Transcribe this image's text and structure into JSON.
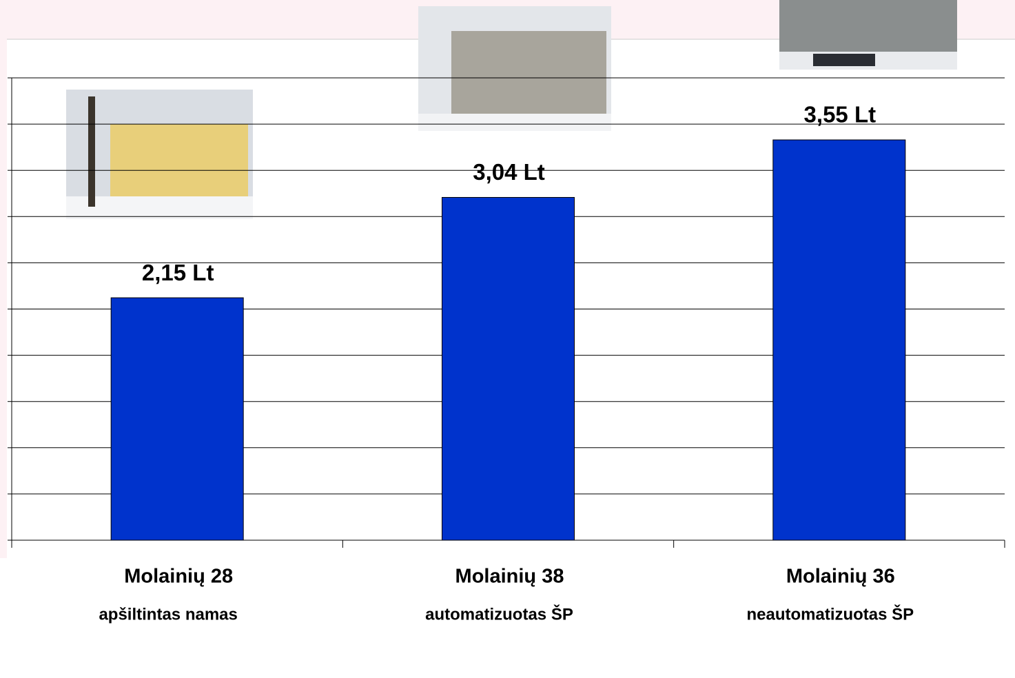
{
  "chart_data": {
    "type": "bar",
    "categories": [
      "Molainių 28",
      "Molainių 38",
      "Molainių 36"
    ],
    "category_notes": [
      "apšiltintas namas",
      "automatizuotas ŠP",
      "neautomatizuotas ŠP"
    ],
    "values": [
      2.15,
      3.04,
      3.55
    ],
    "value_labels": [
      "2,15 Lt",
      "3,04 Lt",
      "3,55 Lt"
    ],
    "color": "#0033cc",
    "ylim": [
      0,
      4.1
    ],
    "grid": true
  }
}
